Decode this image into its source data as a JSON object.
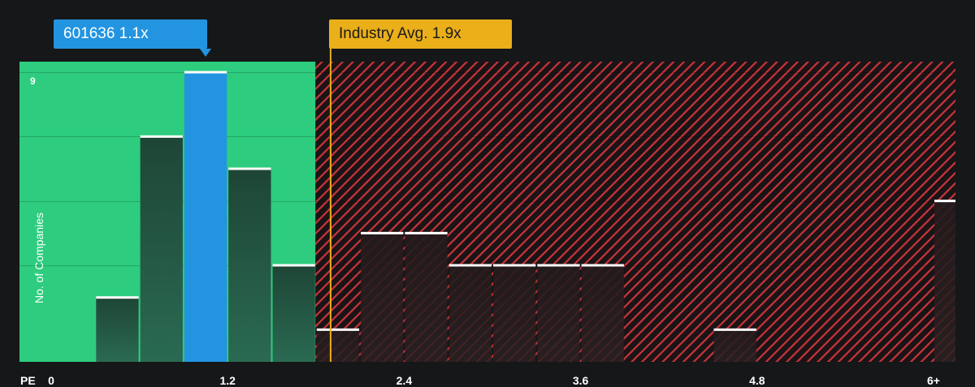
{
  "callouts": {
    "company": "601636 1.1x",
    "industry": "Industry Avg. 1.9x"
  },
  "chart_data": {
    "type": "bar",
    "title": "",
    "xlabel": "PE",
    "ylabel": "No. of Companies",
    "x_tick_labels": [
      "0",
      "1.2",
      "2.4",
      "3.6",
      "4.8",
      "6+"
    ],
    "x_tick_values": [
      0,
      1.2,
      2.4,
      3.6,
      4.8,
      6.0
    ],
    "y_tick_labels": [
      "9"
    ],
    "ylim": [
      0,
      9
    ],
    "xlim": [
      -0.2,
      6.15
    ],
    "bin_width": 0.3,
    "bin_starts": [
      0.3,
      0.6,
      0.9,
      1.2,
      1.5,
      1.8,
      2.1,
      2.4,
      2.7,
      3.0,
      3.3,
      3.6,
      4.5,
      6.0
    ],
    "values": [
      2,
      7,
      9,
      6,
      3,
      1,
      4,
      4,
      3,
      3,
      3,
      3,
      1,
      5
    ],
    "highlight": {
      "label": "601636",
      "value": 1.1,
      "bin_start": 0.9
    },
    "industry_average": 1.9,
    "colors": {
      "good_zone": "#2ecc7e",
      "bad_zone_hatch": "#c9343b",
      "bar_dark": "#1f4a3d",
      "bar_highlight": "#2394e0",
      "industry_line": "#eaaf19",
      "background": "#151719"
    }
  }
}
